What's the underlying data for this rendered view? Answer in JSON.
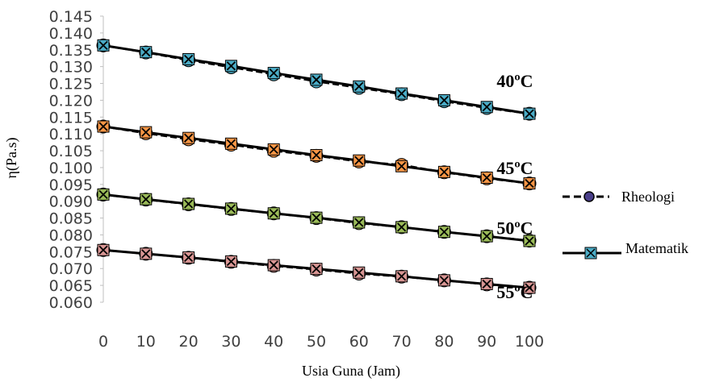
{
  "chart_data": {
    "type": "line",
    "title": "",
    "xlabel": "Usia Guna (Jam)",
    "ylabel": "η(Pa.s)",
    "x": [
      0,
      10,
      20,
      30,
      40,
      50,
      60,
      70,
      80,
      90,
      100
    ],
    "xlim": [
      0,
      100
    ],
    "ylim": [
      0.06,
      0.145
    ],
    "x_tick_labels": [
      "0",
      "10",
      "20",
      "30",
      "40",
      "50",
      "60",
      "70",
      "80",
      "90",
      "100"
    ],
    "y_tick_labels": [
      "0.060",
      "0.065",
      "0.070",
      "0.075",
      "0.080",
      "0.085",
      "0.090",
      "0.095",
      "0.100",
      "0.105",
      "0.110",
      "0.115",
      "0.120",
      "0.125",
      "0.130",
      "0.135",
      "0.140",
      "0.145"
    ],
    "grid": false,
    "legend": {
      "position": "right",
      "entries": [
        "Rheologi",
        "Matematik"
      ]
    },
    "groups": [
      {
        "label": "40ºC",
        "color": "#4bacc6",
        "rheologi": [
          0.1363,
          0.1342,
          0.1319,
          0.1298,
          0.1277,
          0.1256,
          0.1237,
          0.1218,
          0.1197,
          0.1177,
          0.116
        ],
        "matematik": [
          0.1363,
          0.1343,
          0.1322,
          0.1302,
          0.1281,
          0.1261,
          0.1241,
          0.122,
          0.12,
          0.118,
          0.116
        ]
      },
      {
        "label": "45ºC",
        "color": "#f79646",
        "rheologi": [
          0.1122,
          0.1102,
          0.1084,
          0.1068,
          0.105,
          0.1035,
          0.1018,
          0.1008,
          0.0986,
          0.0968,
          0.0953
        ],
        "matematik": [
          0.1122,
          0.1105,
          0.1088,
          0.1071,
          0.1054,
          0.1037,
          0.1021,
          0.1004,
          0.0987,
          0.097,
          0.0953
        ]
      },
      {
        "label": "50ºC",
        "color": "#9bbb59",
        "rheologi": [
          0.092,
          0.0905,
          0.0891,
          0.0877,
          0.0864,
          0.085,
          0.0835,
          0.0823,
          0.0809,
          0.0796,
          0.0783
        ],
        "matematik": [
          0.092,
          0.0906,
          0.0892,
          0.0878,
          0.0864,
          0.0851,
          0.0837,
          0.0823,
          0.0809,
          0.0796,
          0.0782
        ]
      },
      {
        "label": "55ºC",
        "color": "#d99694",
        "rheologi": [
          0.0755,
          0.0744,
          0.0732,
          0.072,
          0.0708,
          0.0697,
          0.0685,
          0.0676,
          0.0665,
          0.0653,
          0.0643
        ],
        "matematik": [
          0.0755,
          0.0744,
          0.0733,
          0.0721,
          0.071,
          0.0699,
          0.0688,
          0.0677,
          0.0665,
          0.0654,
          0.0643
        ]
      }
    ]
  }
}
